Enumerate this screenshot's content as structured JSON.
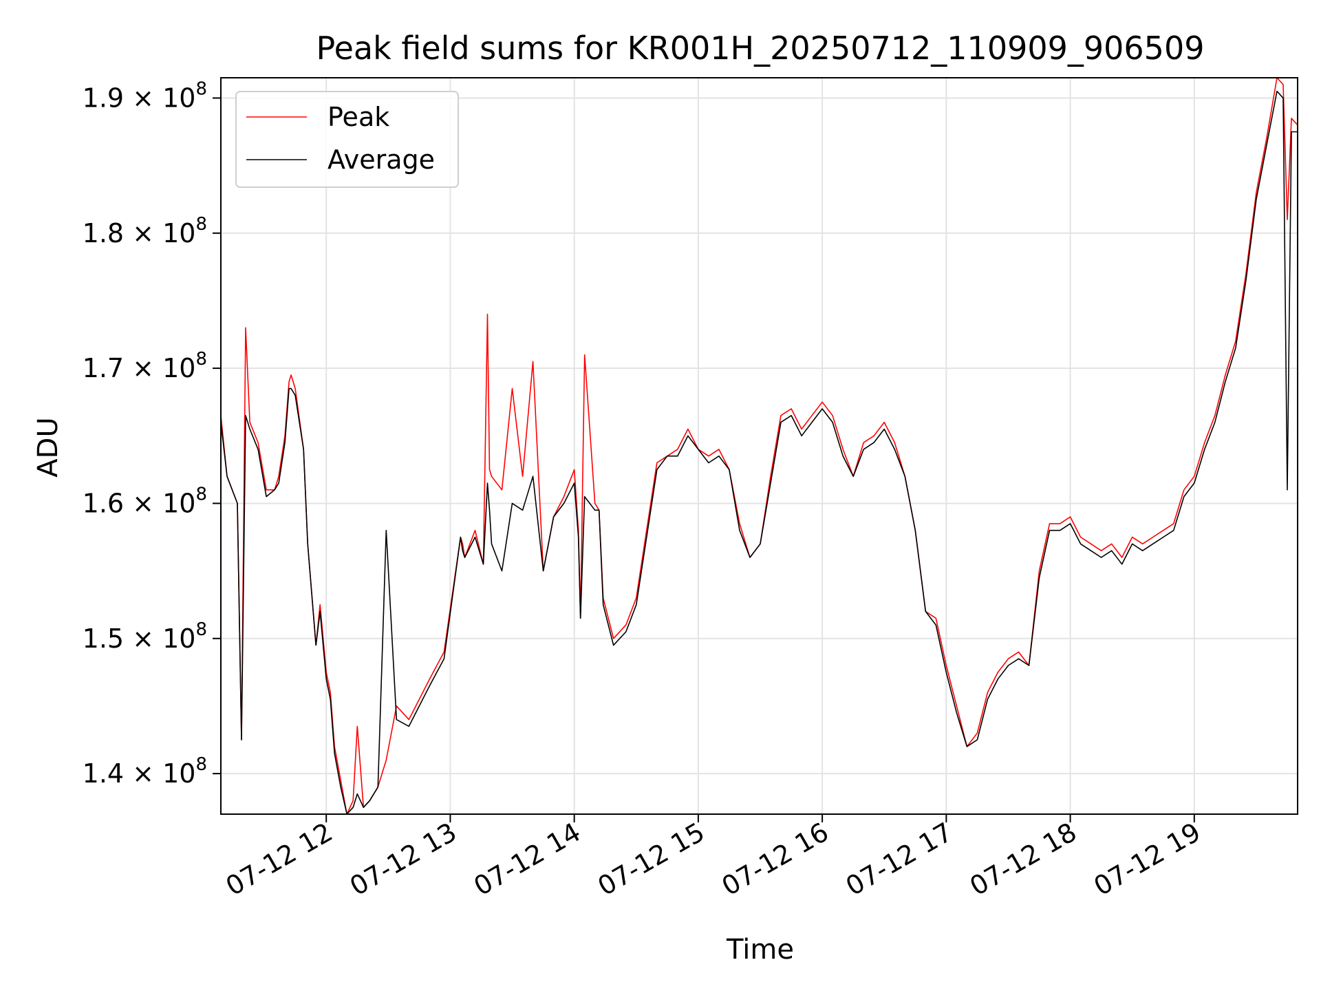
{
  "chart_data": {
    "type": "line",
    "title": "Peak field sums for KR001H_20250712_110909_906509",
    "xlabel": "Time",
    "ylabel": "ADU",
    "x_range_hours": [
      "2025-07-12 11:09",
      "2025-07-12 19:50"
    ],
    "ylim": [
      137000000,
      191500000
    ],
    "grid": true,
    "legend_position": "upper-left",
    "x_ticks": [
      {
        "value": 12,
        "label": "07-12 12"
      },
      {
        "value": 13,
        "label": "07-12 13"
      },
      {
        "value": 14,
        "label": "07-12 14"
      },
      {
        "value": 15,
        "label": "07-12 15"
      },
      {
        "value": 16,
        "label": "07-12 16"
      },
      {
        "value": 17,
        "label": "07-12 17"
      },
      {
        "value": 18,
        "label": "07-12 18"
      },
      {
        "value": 19,
        "label": "07-12 19"
      }
    ],
    "y_ticks": [
      {
        "value": 140000000,
        "mantissa": "1.4",
        "base": "10",
        "exp": "8"
      },
      {
        "value": 150000000,
        "mantissa": "1.5",
        "base": "10",
        "exp": "8"
      },
      {
        "value": 160000000,
        "mantissa": "1.6",
        "base": "10",
        "exp": "8"
      },
      {
        "value": 170000000,
        "mantissa": "1.7",
        "base": "10",
        "exp": "8"
      },
      {
        "value": 180000000,
        "mantissa": "1.8",
        "base": "10",
        "exp": "8"
      },
      {
        "value": 190000000,
        "mantissa": "1.9",
        "base": "10",
        "exp": "8"
      }
    ],
    "series": [
      {
        "name": "Peak",
        "color": "#ff0000",
        "x": [
          "11:09",
          "11:12",
          "11:17",
          "11:19",
          "11:21",
          "11:23",
          "11:27",
          "11:31",
          "11:35",
          "11:37",
          "11:40",
          "11:42",
          "11:43",
          "11:45",
          "11:49",
          "11:51",
          "11:55",
          "11:57",
          "12:00",
          "12:02",
          "12:04",
          "12:07",
          "12:10",
          "12:13",
          "12:15",
          "12:18",
          "12:21",
          "12:25",
          "12:29",
          "12:34",
          "12:40",
          "12:50",
          "12:57",
          "13:05",
          "13:06",
          "13:07",
          "13:12",
          "13:16",
          "13:18",
          "13:19",
          "13:20",
          "13:25",
          "13:30",
          "13:35",
          "13:40",
          "13:45",
          "13:50",
          "13:55",
          "14:00",
          "14:02",
          "14:03",
          "14:05",
          "14:10",
          "14:12",
          "14:14",
          "14:19",
          "14:25",
          "14:30",
          "14:40",
          "14:45",
          "14:50",
          "14:55",
          "15:00",
          "15:05",
          "15:10",
          "15:15",
          "15:20",
          "15:25",
          "15:30",
          "15:35",
          "15:40",
          "15:45",
          "15:50",
          "15:55",
          "16:00",
          "16:05",
          "16:10",
          "16:15",
          "16:20",
          "16:25",
          "16:30",
          "16:35",
          "16:40",
          "16:45",
          "16:50",
          "16:55",
          "17:00",
          "17:05",
          "17:10",
          "17:15",
          "17:20",
          "17:25",
          "17:30",
          "17:35",
          "17:40",
          "17:45",
          "17:50",
          "17:55",
          "18:00",
          "18:05",
          "18:10",
          "18:15",
          "18:20",
          "18:25",
          "18:30",
          "18:35",
          "18:40",
          "18:45",
          "18:50",
          "18:55",
          "19:00",
          "19:05",
          "19:10",
          "19:15",
          "19:20",
          "19:25",
          "19:30",
          "19:35",
          "19:40",
          "19:43",
          "19:45",
          "19:47",
          "19:50"
        ],
        "values": [
          166500000,
          162000000,
          160000000,
          142500000,
          173000000,
          166000000,
          164500000,
          161000000,
          161000000,
          162000000,
          165000000,
          169000000,
          169500000,
          168500000,
          164000000,
          157000000,
          149500000,
          152500000,
          147500000,
          146000000,
          142000000,
          139500000,
          137000000,
          138000000,
          143500000,
          137500000,
          138000000,
          139000000,
          141000000,
          145000000,
          144000000,
          147000000,
          149000000,
          157500000,
          157000000,
          156000000,
          158000000,
          155500000,
          174000000,
          162500000,
          162000000,
          161000000,
          168500000,
          162000000,
          170500000,
          155000000,
          159000000,
          160500000,
          162500000,
          158000000,
          151500000,
          171000000,
          160000000,
          159500000,
          153000000,
          150000000,
          151000000,
          153000000,
          163000000,
          163500000,
          164000000,
          165500000,
          164000000,
          163500000,
          164000000,
          162500000,
          158500000,
          156000000,
          157000000,
          162000000,
          166500000,
          167000000,
          165500000,
          166500000,
          167500000,
          166500000,
          164000000,
          162000000,
          164500000,
          165000000,
          166000000,
          164500000,
          162000000,
          158000000,
          152000000,
          151500000,
          148000000,
          145000000,
          142000000,
          143000000,
          146000000,
          147500000,
          148500000,
          149000000,
          148000000,
          155000000,
          158500000,
          158500000,
          159000000,
          157500000,
          157000000,
          156500000,
          157000000,
          156000000,
          157500000,
          157000000,
          157500000,
          158000000,
          158500000,
          161000000,
          162000000,
          164500000,
          166500000,
          169500000,
          172000000,
          177000000,
          183000000,
          187000000,
          191500000,
          191000000,
          181000000,
          188500000,
          188000000
        ]
      },
      {
        "name": "Average",
        "color": "#000000",
        "x": [
          "11:09",
          "11:12",
          "11:17",
          "11:19",
          "11:21",
          "11:23",
          "11:27",
          "11:31",
          "11:35",
          "11:37",
          "11:40",
          "11:42",
          "11:43",
          "11:45",
          "11:49",
          "11:51",
          "11:55",
          "11:57",
          "12:00",
          "12:02",
          "12:04",
          "12:07",
          "12:10",
          "12:13",
          "12:15",
          "12:18",
          "12:21",
          "12:25",
          "12:29",
          "12:34",
          "12:40",
          "12:50",
          "12:57",
          "13:05",
          "13:06",
          "13:07",
          "13:12",
          "13:16",
          "13:18",
          "13:19",
          "13:20",
          "13:25",
          "13:30",
          "13:35",
          "13:40",
          "13:45",
          "13:50",
          "13:55",
          "14:00",
          "14:02",
          "14:03",
          "14:05",
          "14:10",
          "14:12",
          "14:14",
          "14:19",
          "14:25",
          "14:30",
          "14:40",
          "14:45",
          "14:50",
          "14:55",
          "15:00",
          "15:05",
          "15:10",
          "15:15",
          "15:20",
          "15:25",
          "15:30",
          "15:35",
          "15:40",
          "15:45",
          "15:50",
          "15:55",
          "16:00",
          "16:05",
          "16:10",
          "16:15",
          "16:20",
          "16:25",
          "16:30",
          "16:35",
          "16:40",
          "16:45",
          "16:50",
          "16:55",
          "17:00",
          "17:05",
          "17:10",
          "17:15",
          "17:20",
          "17:25",
          "17:30",
          "17:35",
          "17:40",
          "17:45",
          "17:50",
          "17:55",
          "18:00",
          "18:05",
          "18:10",
          "18:15",
          "18:20",
          "18:25",
          "18:30",
          "18:35",
          "18:40",
          "18:45",
          "18:50",
          "18:55",
          "19:00",
          "19:05",
          "19:10",
          "19:15",
          "19:20",
          "19:25",
          "19:30",
          "19:35",
          "19:40",
          "19:43",
          "19:45",
          "19:47",
          "19:50"
        ],
        "values": [
          166000000,
          162000000,
          160000000,
          142500000,
          166500000,
          165500000,
          164000000,
          160500000,
          161000000,
          161500000,
          164500000,
          168500000,
          168500000,
          168000000,
          164000000,
          157000000,
          149500000,
          152000000,
          147000000,
          145500000,
          141500000,
          139000000,
          137000000,
          137500000,
          138500000,
          137500000,
          138000000,
          139000000,
          158000000,
          144000000,
          143500000,
          146500000,
          148500000,
          157500000,
          156500000,
          156000000,
          157500000,
          155500000,
          161500000,
          159500000,
          157000000,
          155000000,
          160000000,
          159500000,
          162000000,
          155000000,
          159000000,
          160000000,
          161500000,
          157500000,
          151500000,
          160500000,
          159500000,
          159500000,
          152500000,
          149500000,
          150500000,
          152500000,
          162500000,
          163500000,
          163500000,
          165000000,
          164000000,
          163000000,
          163500000,
          162500000,
          158000000,
          156000000,
          157000000,
          161500000,
          166000000,
          166500000,
          165000000,
          166000000,
          167000000,
          166000000,
          163500000,
          162000000,
          164000000,
          164500000,
          165500000,
          164000000,
          162000000,
          158000000,
          152000000,
          151000000,
          147500000,
          144500000,
          142000000,
          142500000,
          145500000,
          147000000,
          148000000,
          148500000,
          148000000,
          154500000,
          158000000,
          158000000,
          158500000,
          157000000,
          156500000,
          156000000,
          156500000,
          155500000,
          157000000,
          156500000,
          157000000,
          157500000,
          158000000,
          160500000,
          161500000,
          164000000,
          166000000,
          169000000,
          171500000,
          176500000,
          182500000,
          186500000,
          190500000,
          190000000,
          161000000,
          187500000,
          187500000
        ]
      }
    ]
  }
}
